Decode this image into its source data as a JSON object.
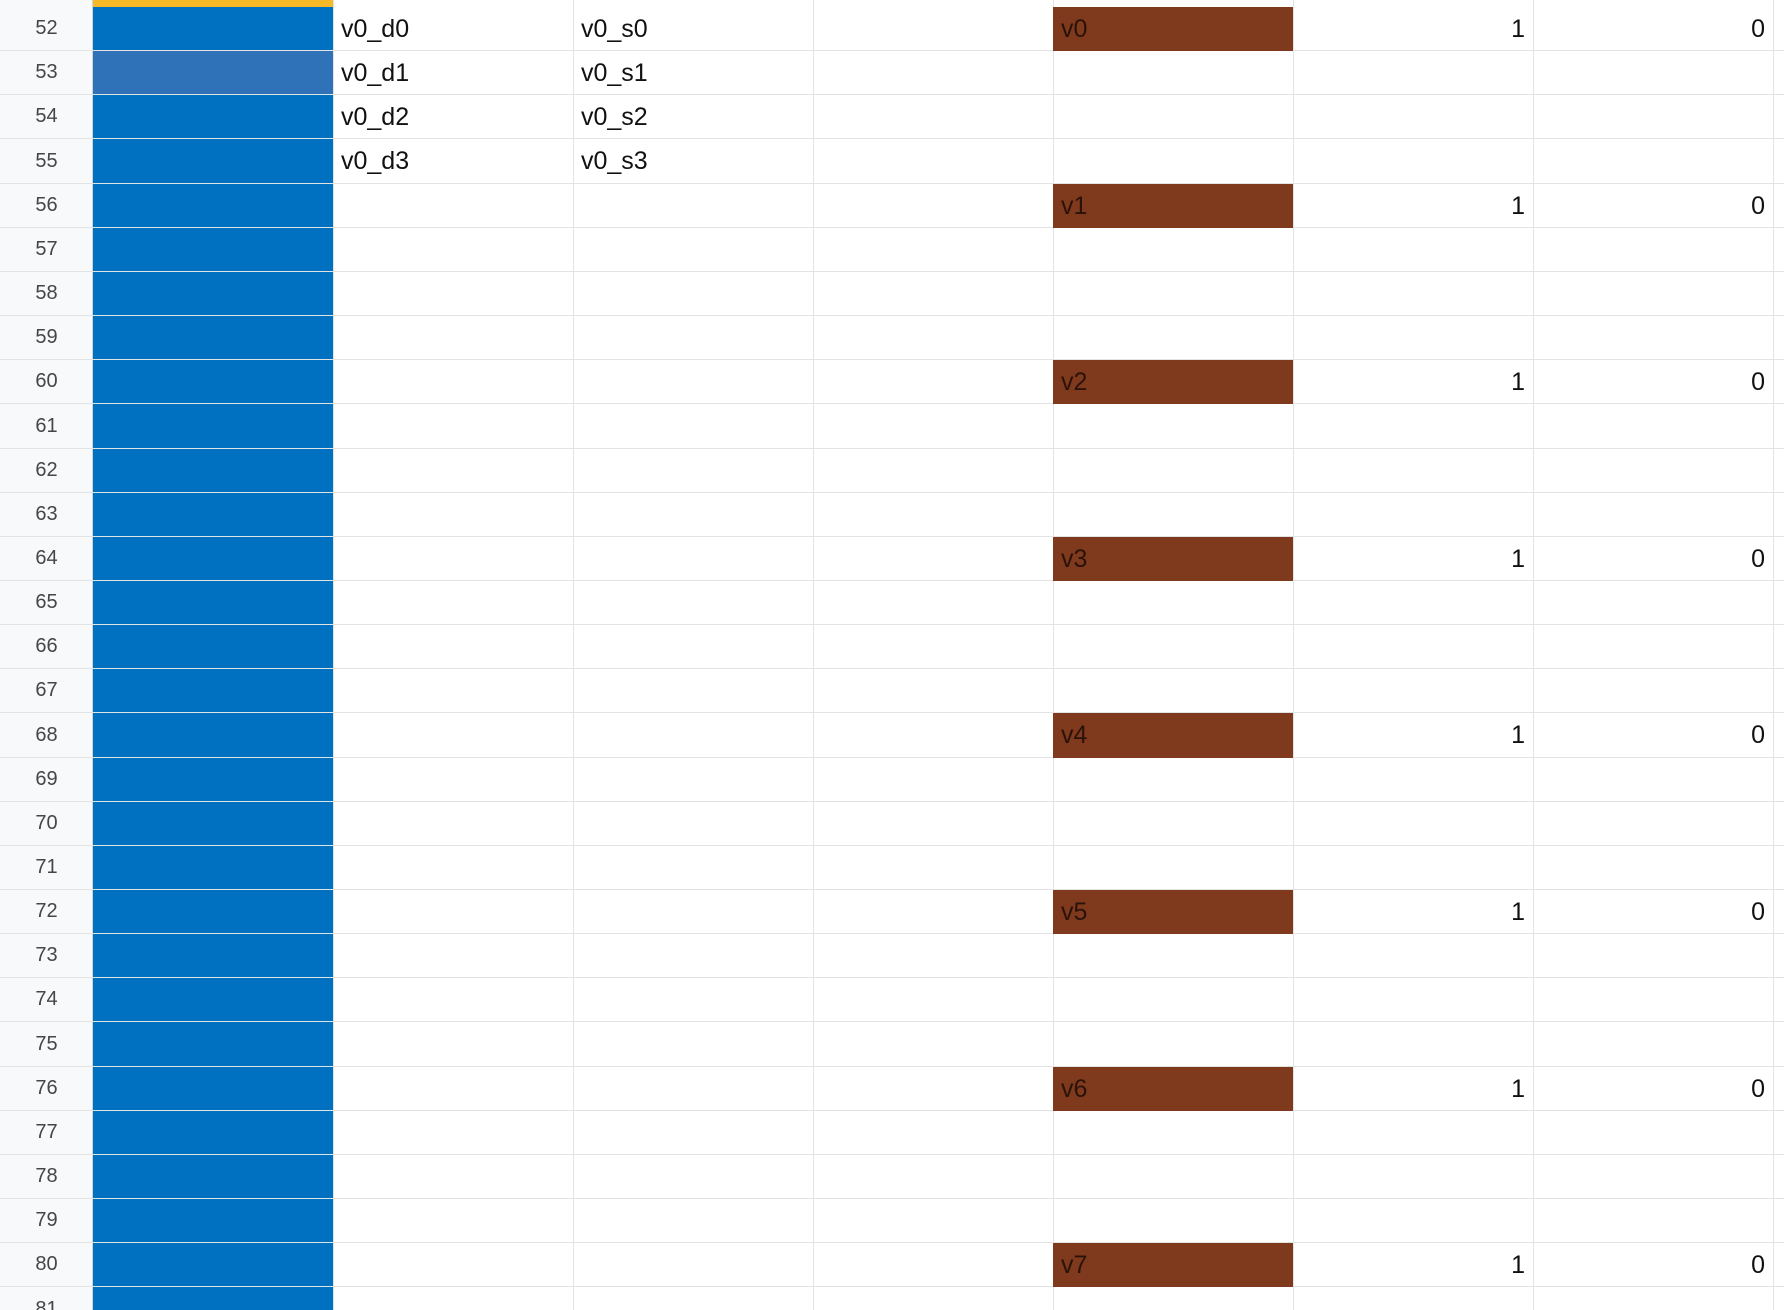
{
  "rows": [
    {
      "num": "52",
      "d": "v0_d0",
      "s": "v0_s0",
      "tag": "v0",
      "a": "1",
      "b": "0"
    },
    {
      "num": "53",
      "d": "v0_d1",
      "s": "v0_s1",
      "tag": "",
      "a": "",
      "b": ""
    },
    {
      "num": "54",
      "d": "v0_d2",
      "s": "v0_s2",
      "tag": "",
      "a": "",
      "b": ""
    },
    {
      "num": "55",
      "d": "v0_d3",
      "s": "v0_s3",
      "tag": "",
      "a": "",
      "b": ""
    },
    {
      "num": "56",
      "d": "",
      "s": "",
      "tag": "v1",
      "a": "1",
      "b": "0"
    },
    {
      "num": "57",
      "d": "",
      "s": "",
      "tag": "",
      "a": "",
      "b": ""
    },
    {
      "num": "58",
      "d": "",
      "s": "",
      "tag": "",
      "a": "",
      "b": ""
    },
    {
      "num": "59",
      "d": "",
      "s": "",
      "tag": "",
      "a": "",
      "b": ""
    },
    {
      "num": "60",
      "d": "",
      "s": "",
      "tag": "v2",
      "a": "1",
      "b": "0"
    },
    {
      "num": "61",
      "d": "",
      "s": "",
      "tag": "",
      "a": "",
      "b": ""
    },
    {
      "num": "62",
      "d": "",
      "s": "",
      "tag": "",
      "a": "",
      "b": ""
    },
    {
      "num": "63",
      "d": "",
      "s": "",
      "tag": "",
      "a": "",
      "b": ""
    },
    {
      "num": "64",
      "d": "",
      "s": "",
      "tag": "v3",
      "a": "1",
      "b": "0"
    },
    {
      "num": "65",
      "d": "",
      "s": "",
      "tag": "",
      "a": "",
      "b": ""
    },
    {
      "num": "66",
      "d": "",
      "s": "",
      "tag": "",
      "a": "",
      "b": ""
    },
    {
      "num": "67",
      "d": "",
      "s": "",
      "tag": "",
      "a": "",
      "b": ""
    },
    {
      "num": "68",
      "d": "",
      "s": "",
      "tag": "v4",
      "a": "1",
      "b": "0"
    },
    {
      "num": "69",
      "d": "",
      "s": "",
      "tag": "",
      "a": "",
      "b": ""
    },
    {
      "num": "70",
      "d": "",
      "s": "",
      "tag": "",
      "a": "",
      "b": ""
    },
    {
      "num": "71",
      "d": "",
      "s": "",
      "tag": "",
      "a": "",
      "b": ""
    },
    {
      "num": "72",
      "d": "",
      "s": "",
      "tag": "v5",
      "a": "1",
      "b": "0"
    },
    {
      "num": "73",
      "d": "",
      "s": "",
      "tag": "",
      "a": "",
      "b": ""
    },
    {
      "num": "74",
      "d": "",
      "s": "",
      "tag": "",
      "a": "",
      "b": ""
    },
    {
      "num": "75",
      "d": "",
      "s": "",
      "tag": "",
      "a": "",
      "b": ""
    },
    {
      "num": "76",
      "d": "",
      "s": "",
      "tag": "v6",
      "a": "1",
      "b": "0"
    },
    {
      "num": "77",
      "d": "",
      "s": "",
      "tag": "",
      "a": "",
      "b": ""
    },
    {
      "num": "78",
      "d": "",
      "s": "",
      "tag": "",
      "a": "",
      "b": ""
    },
    {
      "num": "79",
      "d": "",
      "s": "",
      "tag": "",
      "a": "",
      "b": ""
    },
    {
      "num": "80",
      "d": "",
      "s": "",
      "tag": "v7",
      "a": "1",
      "b": "0"
    },
    {
      "num": "81",
      "d": "",
      "s": "",
      "tag": "",
      "a": "",
      "b": ""
    }
  ],
  "colors": {
    "fill_column": "#0070c0",
    "selected_cell": "#2f72b8",
    "top_accent": "#f7b928",
    "tag_fill": "#7f3a1e",
    "tag_text": "#2b1209"
  }
}
